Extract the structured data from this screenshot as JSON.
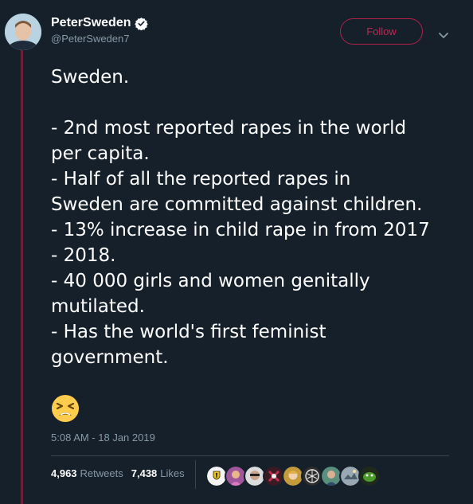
{
  "tweet": {
    "display_name": "PeterSweden",
    "handle": "@PeterSweden7",
    "follow_label": "Follow",
    "text_lines": [
      "Sweden.",
      "",
      "- 2nd most reported rapes in the world",
      "per capita.",
      "- Half of all the reported rapes in",
      "Sweden are committed against children.",
      "- 13% increase in child rape in from 2017",
      "- 2018.",
      "- 40 000 girls and women genitally",
      "mutilated.",
      "- Has the world's first feminist",
      "government."
    ],
    "emoji": "tired-face-emoji",
    "timestamp": "5:08 AM - 18 Jan 2019",
    "retweets_count": "4,963",
    "retweets_label": "Retweets",
    "likes_count": "7,438",
    "likes_label": "Likes"
  },
  "icons": {
    "verified": "verified-badge-icon",
    "caret": "chevron-down-icon"
  },
  "colors": {
    "background": "#15202b",
    "thread_line": "#6b2035",
    "follow_accent": "#c3264f",
    "secondary_text": "#8899a6",
    "verified": "#ffffff"
  },
  "liker_avatars": [
    {
      "name": "liker-avatar-1",
      "color": "#f5f5f5"
    },
    {
      "name": "liker-avatar-2",
      "color": "#a0569a"
    },
    {
      "name": "liker-avatar-3",
      "color": "#dcdcdc"
    },
    {
      "name": "liker-avatar-4",
      "color": "#7a1f2f"
    },
    {
      "name": "liker-avatar-5",
      "color": "#c49a3c"
    },
    {
      "name": "liker-avatar-6",
      "color": "#2c2c2c"
    },
    {
      "name": "liker-avatar-7",
      "color": "#5b8f7d"
    },
    {
      "name": "liker-avatar-8",
      "color": "#9aa8b4"
    },
    {
      "name": "liker-avatar-9",
      "color": "#4c7a2c"
    }
  ]
}
